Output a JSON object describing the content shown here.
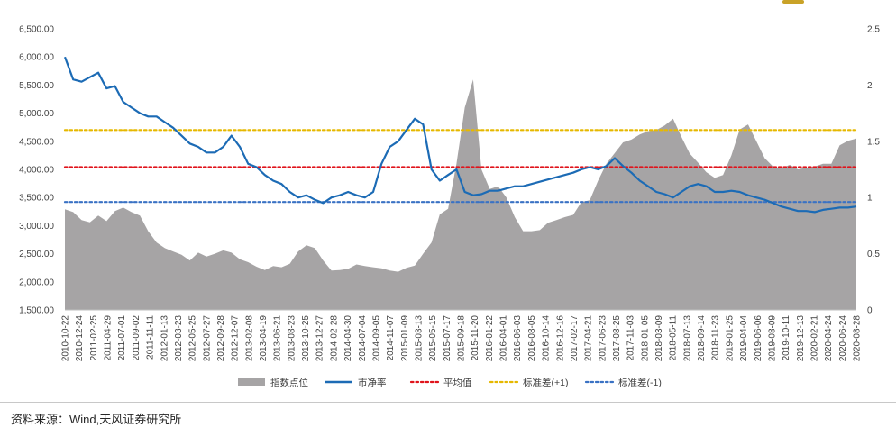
{
  "source": "资料来源：Wind,天风证券研究所",
  "colors": {
    "index_area": "#a6a4a5",
    "pb_line": "#1c6bb5",
    "mean_line": "#e0141c",
    "plus_sd_line": "#e6b800",
    "minus_sd_line": "#3a72c4",
    "axis_text": "#404040",
    "logo": "#c9a227"
  },
  "chart_data": {
    "type": "area+line",
    "x_tick_labels": [
      "2010-10-22",
      "2010-12-24",
      "2011-02-25",
      "2011-04-29",
      "2011-07-01",
      "2011-09-02",
      "2011-11-11",
      "2012-01-13",
      "2012-03-23",
      "2012-05-25",
      "2012-07-27",
      "2012-09-28",
      "2012-12-07",
      "2013-02-08",
      "2013-04-19",
      "2013-06-21",
      "2013-08-23",
      "2013-10-25",
      "2013-12-27",
      "2014-02-28",
      "2014-04-30",
      "2014-07-04",
      "2014-09-05",
      "2014-11-07",
      "2015-01-09",
      "2015-03-13",
      "2015-05-15",
      "2015-07-17",
      "2015-09-18",
      "2015-11-20",
      "2016-01-22",
      "2016-04-01",
      "2016-06-03",
      "2016-08-05",
      "2016-10-14",
      "2016-12-16",
      "2017-02-17",
      "2017-04-21",
      "2017-06-23",
      "2017-08-25",
      "2017-11-03",
      "2018-01-05",
      "2018-03-09",
      "2018-05-11",
      "2018-07-13",
      "2018-09-14",
      "2018-11-23",
      "2019-01-25",
      "2019-04-04",
      "2019-06-06",
      "2019-08-09",
      "2019-10-11",
      "2019-12-13",
      "2020-02-21",
      "2020-04-24",
      "2020-06-24",
      "2020-08-28"
    ],
    "y_left": {
      "min": 1500,
      "max": 6500,
      "step": 500,
      "tick_labels": [
        "1,500.00",
        "2,000.00",
        "2,500.00",
        "3,000.00",
        "3,500.00",
        "4,000.00",
        "4,500.00",
        "5,000.00",
        "5,500.00",
        "6,000.00",
        "6,500.00"
      ]
    },
    "y_right": {
      "min": 0,
      "max": 2.5,
      "step": 0.5,
      "tick_labels": [
        "0",
        "0.5",
        "1",
        "1.5",
        "2",
        "2.5"
      ]
    },
    "legend": {
      "position": "bottom",
      "entries": [
        "指数点位",
        "市净率",
        "平均值",
        "标准差(+1)",
        "标准差(-1)"
      ]
    },
    "series": [
      {
        "name": "指数点位",
        "type": "area",
        "axis": "left",
        "values": [
          3290,
          3240,
          3100,
          3060,
          3180,
          3080,
          3260,
          3320,
          3240,
          3180,
          2900,
          2700,
          2600,
          2540,
          2480,
          2380,
          2520,
          2450,
          2500,
          2560,
          2520,
          2400,
          2350,
          2270,
          2210,
          2280,
          2260,
          2320,
          2540,
          2650,
          2600,
          2380,
          2200,
          2210,
          2230,
          2310,
          2280,
          2260,
          2240,
          2200,
          2180,
          2250,
          2290,
          2500,
          2700,
          3200,
          3300,
          4100,
          5100,
          5600,
          4000,
          3650,
          3700,
          3500,
          3150,
          2900,
          2900,
          2920,
          3050,
          3100,
          3150,
          3190,
          3420,
          3450,
          3800,
          4100,
          4290,
          4480,
          4530,
          4620,
          4680,
          4700,
          4780,
          4900,
          4580,
          4280,
          4120,
          3950,
          3850,
          3900,
          4250,
          4710,
          4800,
          4500,
          4200,
          4050,
          4020,
          4080,
          4000,
          4030,
          4050,
          4100,
          4100,
          4430,
          4510,
          4550
        ]
      },
      {
        "name": "市净率",
        "type": "line",
        "axis": "right",
        "values": [
          2.25,
          2.05,
          2.03,
          2.07,
          2.11,
          1.97,
          1.99,
          1.85,
          1.8,
          1.75,
          1.72,
          1.72,
          1.67,
          1.62,
          1.55,
          1.48,
          1.45,
          1.4,
          1.4,
          1.45,
          1.55,
          1.45,
          1.3,
          1.27,
          1.2,
          1.15,
          1.12,
          1.05,
          1.0,
          1.02,
          0.98,
          0.95,
          1.0,
          1.02,
          1.05,
          1.02,
          1.0,
          1.05,
          1.3,
          1.45,
          1.5,
          1.6,
          1.7,
          1.65,
          1.25,
          1.15,
          1.2,
          1.25,
          1.05,
          1.02,
          1.03,
          1.06,
          1.06,
          1.08,
          1.1,
          1.1,
          1.12,
          1.14,
          1.16,
          1.18,
          1.2,
          1.22,
          1.25,
          1.27,
          1.25,
          1.28,
          1.35,
          1.28,
          1.22,
          1.15,
          1.1,
          1.05,
          1.03,
          1.0,
          1.05,
          1.1,
          1.12,
          1.1,
          1.05,
          1.05,
          1.06,
          1.05,
          1.02,
          1.0,
          0.98,
          0.95,
          0.92,
          0.9,
          0.88,
          0.88,
          0.87,
          0.89,
          0.9,
          0.91,
          0.91,
          0.92
        ]
      },
      {
        "name": "平均值",
        "type": "hline",
        "axis": "right",
        "value": 1.27
      },
      {
        "name": "标准差(+1)",
        "type": "hline",
        "axis": "right",
        "value": 1.6
      },
      {
        "name": "标准差(-1)",
        "type": "hline",
        "axis": "right",
        "value": 0.96
      }
    ]
  }
}
